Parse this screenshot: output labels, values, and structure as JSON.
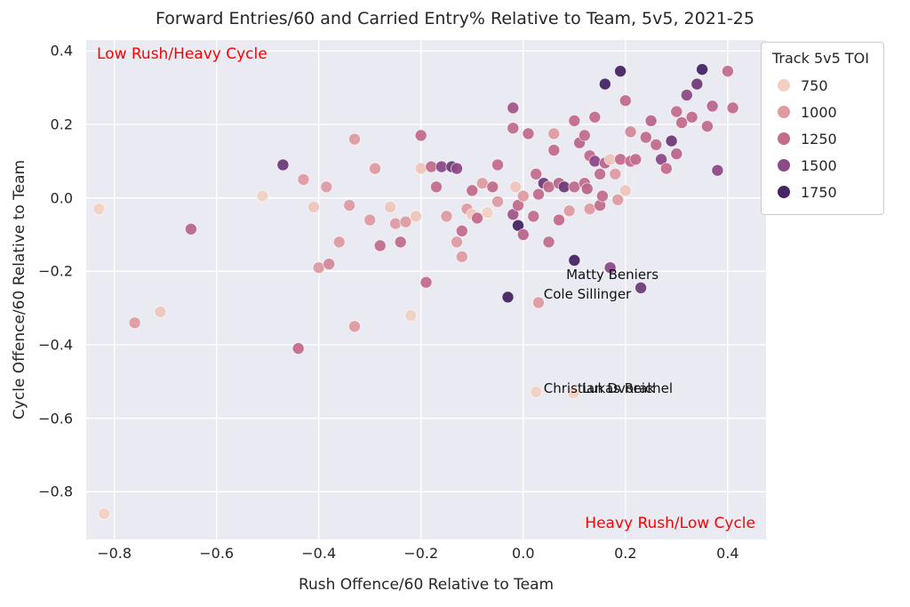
{
  "title": "Forward Entries/60 and Carried Entry% Relative to Team, 5v5, 2021-25",
  "chart_data": {
    "type": "scatter",
    "title": "Forward Entries/60 and Carried Entry% Relative to Team, 5v5, 2021-25",
    "xlabel": "Rush Offence/60 Relative to Team",
    "ylabel": "Cycle Offence/60 Relative to Team",
    "xlim": [
      -0.855,
      0.475
    ],
    "ylim": [
      -0.93,
      0.43
    ],
    "x_ticks": [
      -0.8,
      -0.6,
      -0.4,
      -0.2,
      0.0,
      0.2,
      0.4
    ],
    "y_ticks": [
      0.4,
      0.2,
      0.0,
      -0.2,
      -0.4,
      -0.6,
      -0.8
    ],
    "grid": true,
    "grid_color": "#ffffff",
    "plot_background": "#eaeaf2",
    "legend": {
      "title": "Track 5v5 TOI",
      "values": [
        750,
        1000,
        1250,
        1500,
        1750
      ],
      "position": "upper right"
    },
    "color_stops": [
      {
        "value": 750,
        "color": "#f2d1c2"
      },
      {
        "value": 1000,
        "color": "#de9ba2"
      },
      {
        "value": 1250,
        "color": "#c36d8d"
      },
      {
        "value": 1500,
        "color": "#8c4a87"
      },
      {
        "value": 1750,
        "color": "#472563"
      }
    ],
    "corner_labels": [
      {
        "text": "Low Rush/Heavy Cycle",
        "color": "#ff0000",
        "position": "top-left"
      },
      {
        "text": "Heavy Rush/Low Cycle",
        "color": "#ff0000",
        "position": "bottom-right"
      }
    ],
    "annotations": [
      {
        "text": "Matty Beniers",
        "x": 0.084,
        "y": -0.209
      },
      {
        "text": "Cole Sillinger",
        "x": 0.04,
        "y": -0.262
      },
      {
        "text": "Christian Dvorak",
        "x": 0.04,
        "y": -0.519
      },
      {
        "text": "Lukas Reichel",
        "x": 0.115,
        "y": -0.519
      }
    ],
    "points": [
      [
        -0.83,
        -0.03,
        750
      ],
      [
        -0.82,
        -0.86,
        750
      ],
      [
        -0.76,
        -0.34,
        1000
      ],
      [
        -0.71,
        -0.31,
        800
      ],
      [
        -0.65,
        -0.085,
        1300
      ],
      [
        -0.51,
        0.005,
        750
      ],
      [
        -0.47,
        0.09,
        1600
      ],
      [
        -0.44,
        -0.41,
        1250
      ],
      [
        -0.43,
        0.05,
        1000
      ],
      [
        -0.41,
        -0.025,
        800
      ],
      [
        -0.4,
        -0.19,
        1000
      ],
      [
        -0.385,
        0.03,
        1000
      ],
      [
        -0.38,
        -0.18,
        1100
      ],
      [
        -0.36,
        -0.12,
        1000
      ],
      [
        -0.34,
        -0.02,
        1000
      ],
      [
        -0.33,
        -0.35,
        1000
      ],
      [
        -0.33,
        0.16,
        1000
      ],
      [
        -0.3,
        -0.06,
        1000
      ],
      [
        -0.29,
        0.08,
        1000
      ],
      [
        -0.28,
        -0.13,
        1250
      ],
      [
        -0.26,
        -0.025,
        800
      ],
      [
        -0.25,
        -0.07,
        1000
      ],
      [
        -0.24,
        -0.12,
        1250
      ],
      [
        -0.23,
        -0.065,
        1000
      ],
      [
        -0.22,
        -0.32,
        750
      ],
      [
        -0.21,
        -0.05,
        800
      ],
      [
        -0.2,
        0.17,
        1250
      ],
      [
        -0.2,
        0.08,
        800
      ],
      [
        -0.19,
        -0.23,
        1250
      ],
      [
        -0.18,
        0.085,
        1250
      ],
      [
        -0.17,
        0.03,
        1250
      ],
      [
        -0.16,
        0.085,
        1500
      ],
      [
        -0.15,
        -0.05,
        1000
      ],
      [
        -0.14,
        0.085,
        1600
      ],
      [
        -0.13,
        0.08,
        1500
      ],
      [
        -0.13,
        -0.12,
        1000
      ],
      [
        -0.12,
        -0.09,
        1250
      ],
      [
        -0.12,
        -0.16,
        1000
      ],
      [
        -0.11,
        -0.03,
        1000
      ],
      [
        -0.1,
        -0.045,
        800
      ],
      [
        -0.1,
        0.02,
        1250
      ],
      [
        -0.09,
        -0.055,
        1250
      ],
      [
        -0.08,
        0.04,
        1000
      ],
      [
        -0.07,
        -0.04,
        750
      ],
      [
        -0.06,
        0.03,
        1250
      ],
      [
        -0.05,
        -0.01,
        1000
      ],
      [
        -0.05,
        0.09,
        1250
      ],
      [
        -0.03,
        -0.27,
        1750
      ],
      [
        -0.02,
        0.245,
        1400
      ],
      [
        -0.02,
        0.19,
        1250
      ],
      [
        -0.02,
        -0.045,
        1400
      ],
      [
        -0.015,
        0.03,
        800
      ],
      [
        -0.01,
        -0.02,
        1250
      ],
      [
        -0.01,
        -0.075,
        1750
      ],
      [
        0.0,
        0.005,
        1000
      ],
      [
        0.0,
        -0.1,
        1300
      ],
      [
        0.01,
        0.175,
        1250
      ],
      [
        0.02,
        -0.05,
        1250
      ],
      [
        0.025,
        0.065,
        1250
      ],
      [
        0.03,
        -0.285,
        1000
      ],
      [
        0.03,
        0.01,
        1250
      ],
      [
        0.04,
        0.04,
        1600
      ],
      [
        0.05,
        -0.12,
        1250
      ],
      [
        0.05,
        0.03,
        1250
      ],
      [
        0.06,
        0.13,
        1250
      ],
      [
        0.06,
        0.175,
        1000
      ],
      [
        0.07,
        0.04,
        1300
      ],
      [
        0.07,
        -0.06,
        1250
      ],
      [
        0.08,
        0.03,
        1600
      ],
      [
        0.09,
        -0.035,
        1000
      ],
      [
        0.1,
        -0.17,
        1750
      ],
      [
        0.1,
        0.21,
        1250
      ],
      [
        0.1,
        0.03,
        1250
      ],
      [
        0.11,
        0.15,
        1300
      ],
      [
        0.12,
        0.17,
        1250
      ],
      [
        0.12,
        0.04,
        1250
      ],
      [
        0.125,
        0.025,
        1300
      ],
      [
        0.13,
        -0.03,
        1000
      ],
      [
        0.13,
        0.115,
        1250
      ],
      [
        0.14,
        0.22,
        1250
      ],
      [
        0.14,
        0.1,
        1500
      ],
      [
        0.15,
        0.065,
        1250
      ],
      [
        0.15,
        -0.02,
        1250
      ],
      [
        0.155,
        0.005,
        1250
      ],
      [
        0.16,
        0.31,
        1750
      ],
      [
        0.16,
        0.095,
        1300
      ],
      [
        0.17,
        -0.19,
        1500
      ],
      [
        0.17,
        0.105,
        800
      ],
      [
        0.18,
        0.065,
        1000
      ],
      [
        0.185,
        -0.005,
        1000
      ],
      [
        0.19,
        0.345,
        1750
      ],
      [
        0.19,
        0.105,
        1250
      ],
      [
        0.2,
        0.265,
        1250
      ],
      [
        0.2,
        0.02,
        800
      ],
      [
        0.21,
        0.18,
        1100
      ],
      [
        0.21,
        0.1,
        1250
      ],
      [
        0.22,
        0.105,
        1250
      ],
      [
        0.23,
        -0.245,
        1600
      ],
      [
        0.24,
        0.165,
        1250
      ],
      [
        0.25,
        0.21,
        1300
      ],
      [
        0.26,
        0.145,
        1250
      ],
      [
        0.27,
        0.105,
        1500
      ],
      [
        0.28,
        0.08,
        1250
      ],
      [
        0.29,
        0.155,
        1600
      ],
      [
        0.3,
        0.235,
        1250
      ],
      [
        0.3,
        0.12,
        1300
      ],
      [
        0.31,
        0.205,
        1250
      ],
      [
        0.32,
        0.28,
        1500
      ],
      [
        0.33,
        0.22,
        1250
      ],
      [
        0.34,
        0.31,
        1600
      ],
      [
        0.35,
        0.35,
        1750
      ],
      [
        0.36,
        0.195,
        1250
      ],
      [
        0.37,
        0.25,
        1300
      ],
      [
        0.38,
        0.075,
        1500
      ],
      [
        0.4,
        0.345,
        1250
      ],
      [
        0.41,
        0.245,
        1250
      ],
      [
        0.025,
        -0.528,
        750
      ],
      [
        0.098,
        -0.531,
        750
      ]
    ]
  }
}
